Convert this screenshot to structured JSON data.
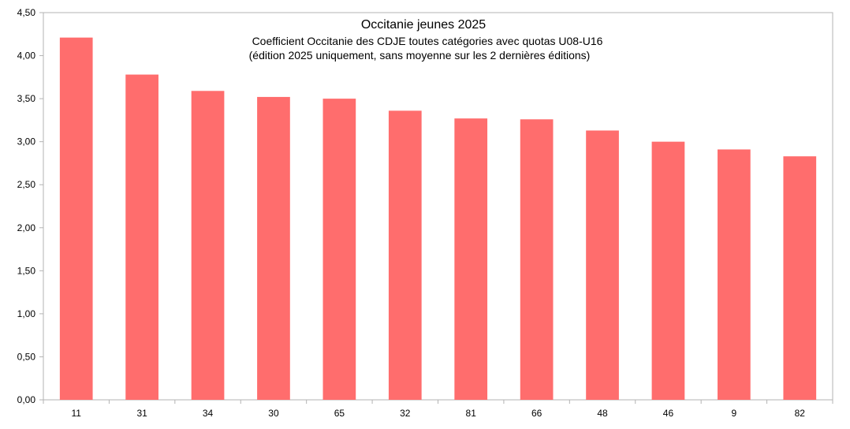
{
  "chart_data": {
    "type": "bar",
    "title": "Occitanie jeunes 2025",
    "subtitle_line1": "Coefficient Occitanie des CDJE toutes catégories avec quotas U08-U16",
    "subtitle_line2": "(édition 2025 uniquement, sans moyenne sur les 2 dernières éditions)",
    "categories": [
      "11",
      "31",
      "34",
      "30",
      "65",
      "32",
      "81",
      "66",
      "48",
      "46",
      "9",
      "82"
    ],
    "values": [
      4.21,
      3.78,
      3.59,
      3.52,
      3.5,
      3.36,
      3.27,
      3.26,
      3.13,
      3.0,
      2.91,
      2.83
    ],
    "xlabel": "",
    "ylabel": "",
    "ylim": [
      0,
      4.5
    ],
    "yticks": [
      "0,00",
      "0,50",
      "1,00",
      "1,50",
      "2,00",
      "2,50",
      "3,00",
      "3,50",
      "4,00",
      "4,50"
    ],
    "grid": false,
    "legend": "none",
    "bar_color": "#ff6d6d"
  }
}
